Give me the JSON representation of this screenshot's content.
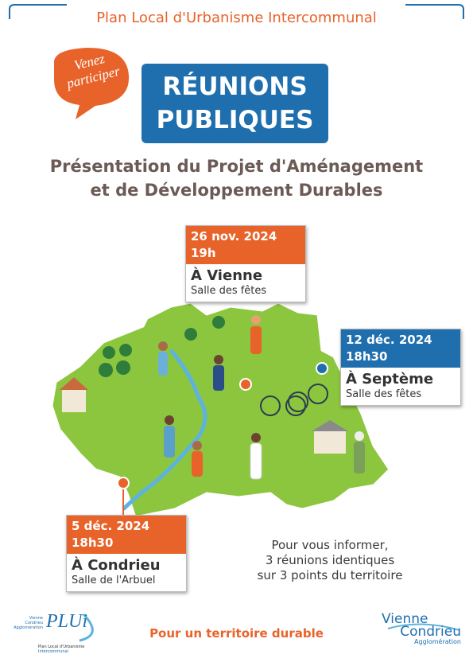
{
  "header": {
    "title": "Plan Local d'Urbanisme Intercommunal"
  },
  "badge": {
    "lines": [
      "Venez",
      "participer"
    ]
  },
  "title": {
    "lines": [
      "RÉUNIONS",
      "PUBLIQUES"
    ]
  },
  "subtitle": {
    "lines": [
      "Présentation du Projet d'Aménagement",
      "et de Développement Durables"
    ]
  },
  "meetings": [
    {
      "date": "26 nov. 2024",
      "time": "19h",
      "place": "À Vienne",
      "venue": "Salle des fêtes"
    },
    {
      "date": "12 déc. 2024",
      "time": "18h30",
      "place": "À Septème",
      "venue": "Salle des fêtes"
    },
    {
      "date": "5 déc. 2024",
      "time": "18h30",
      "place": "À Condrieu",
      "venue": "Salle de l'Arbuel"
    }
  ],
  "info": {
    "lines": [
      "Pour vous informer,",
      "3 réunions identiques",
      "sur 3 points du territoire"
    ]
  },
  "footer": {
    "slogan": "Pour un territoire durable"
  },
  "logo_left": {
    "mark": "PLUi",
    "org_lines": [
      "Vienne",
      "Condrieu",
      "Agglomération"
    ],
    "caption_lines": [
      "Plan Local d'Urbanisme",
      "Intercommunal"
    ]
  },
  "logo_right": {
    "lines": [
      "Vienne",
      "Condrieu",
      "Agglomération"
    ]
  }
}
